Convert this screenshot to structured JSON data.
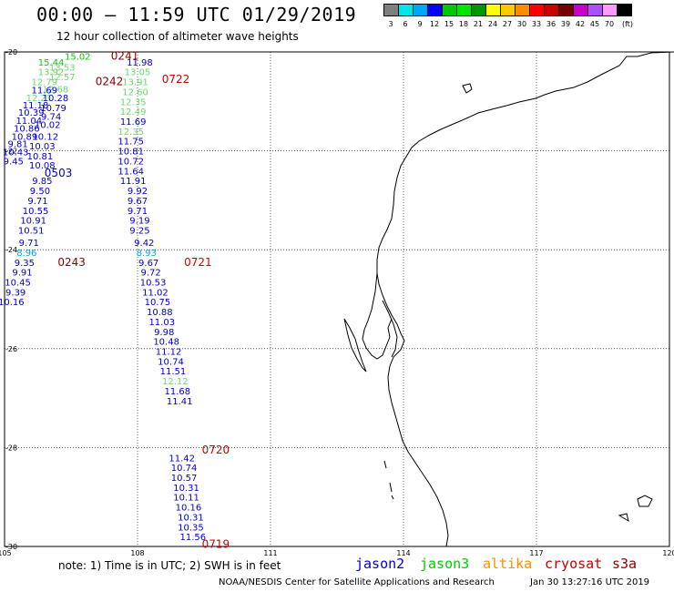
{
  "header": {
    "title": "00:00 – 11:59 UTC 01/29/2019",
    "subtitle": "12 hour collection of altimeter wave heights"
  },
  "colorbar": {
    "colors": [
      "#7f7f7f",
      "#00e5e5",
      "#00a5ff",
      "#0000ff",
      "#00c800",
      "#00e600",
      "#009600",
      "#ffff00",
      "#ffc800",
      "#ff8c00",
      "#ff0000",
      "#c80000",
      "#780000",
      "#c800c8",
      "#aa50ff",
      "#ff9bff",
      "#000000"
    ],
    "labels": [
      "3",
      "6",
      "9",
      "12",
      "15",
      "18",
      "21",
      "24",
      "27",
      "30",
      "33",
      "36",
      "39",
      "42",
      "45",
      "70",
      "(ft)"
    ]
  },
  "map": {
    "lon_ticks": [
      "105",
      "108",
      "111",
      "114",
      "117",
      "120"
    ],
    "lat_ticks": [
      "-20",
      "-22",
      "-24",
      "-26",
      "-28",
      "-30"
    ],
    "lon_range": [
      105,
      120
    ],
    "lat_range": [
      -20,
      -30
    ],
    "gridlines": true
  },
  "colors": {
    "jason2": "#0000cc",
    "jason3": "#00cc00",
    "altika": "#ff8c00",
    "cryosat": "#cc0000",
    "s3a": "#8b0000",
    "lightgreen": "#66dd66",
    "cyan": "#00aacc"
  },
  "pass_labels": [
    {
      "text": "0241",
      "lon": 107.4,
      "lat": -20.08,
      "color": "s3a"
    },
    {
      "text": "0722",
      "lon": 108.55,
      "lat": -20.55,
      "color": "cryosat"
    },
    {
      "text": "0242",
      "lon": 107.05,
      "lat": -20.6,
      "color": "s3a"
    },
    {
      "text": "0503",
      "lon": 105.9,
      "lat": -22.45,
      "color": "jason2"
    },
    {
      "text": "0243",
      "lon": 106.2,
      "lat": -24.25,
      "color": "s3a"
    },
    {
      "text": "0721",
      "lon": 109.05,
      "lat": -24.25,
      "color": "cryosat"
    },
    {
      "text": "0720",
      "lon": 109.45,
      "lat": -28.05,
      "color": "cryosat"
    },
    {
      "text": "0719",
      "lon": 109.45,
      "lat": -29.95,
      "color": "cryosat"
    }
  ],
  "tracks": [
    {
      "name": "track-0241",
      "points": [
        {
          "v": "15.02",
          "lon": 106.65,
          "lat": -20.08,
          "c": "jason3"
        },
        {
          "v": "15.44",
          "lon": 106.05,
          "lat": -20.2,
          "c": "jason3"
        },
        {
          "v": "13.53",
          "lon": 106.3,
          "lat": -20.3,
          "c": "lightgreen"
        },
        {
          "v": "13.92",
          "lon": 106.05,
          "lat": -20.4,
          "c": "lightgreen"
        },
        {
          "v": "12.57",
          "lon": 106.3,
          "lat": -20.5,
          "c": "lightgreen"
        },
        {
          "v": "12.79",
          "lon": 105.9,
          "lat": -20.6,
          "c": "lightgreen"
        },
        {
          "v": "12.68",
          "lon": 106.15,
          "lat": -20.75,
          "c": "lightgreen"
        },
        {
          "v": "11.69",
          "lon": 105.9,
          "lat": -20.76,
          "c": "jason2"
        },
        {
          "v": "12.21",
          "lon": 105.78,
          "lat": -20.92,
          "c": "lightgreen"
        },
        {
          "v": "10.28",
          "lon": 106.15,
          "lat": -20.92,
          "c": "jason2"
        },
        {
          "v": "11.18",
          "lon": 105.7,
          "lat": -21.07,
          "c": "jason2"
        },
        {
          "v": "10.79",
          "lon": 106.1,
          "lat": -21.12,
          "c": "jason2"
        },
        {
          "v": "10.39",
          "lon": 105.6,
          "lat": -21.22,
          "c": "jason2"
        },
        {
          "v": "9.74",
          "lon": 106.05,
          "lat": -21.3,
          "c": "jason2"
        },
        {
          "v": "11.04",
          "lon": 105.55,
          "lat": -21.38,
          "c": "jason2"
        },
        {
          "v": "10.02",
          "lon": 105.97,
          "lat": -21.46,
          "c": "jason2"
        },
        {
          "v": "10.86",
          "lon": 105.5,
          "lat": -21.54,
          "c": "jason2"
        },
        {
          "v": "10.12",
          "lon": 105.92,
          "lat": -21.7,
          "c": "jason2"
        },
        {
          "v": "10.89",
          "lon": 105.45,
          "lat": -21.7,
          "c": "jason2"
        },
        {
          "v": "9.81",
          "lon": 105.3,
          "lat": -21.85,
          "c": "jason2"
        },
        {
          "v": "10.03",
          "lon": 105.85,
          "lat": -21.9,
          "c": "jason2"
        },
        {
          "v": "10.43",
          "lon": 105.25,
          "lat": -22.02,
          "c": "jason2"
        },
        {
          "v": "10.81",
          "lon": 105.8,
          "lat": -22.1,
          "c": "jason2"
        },
        {
          "v": "9.45",
          "lon": 105.2,
          "lat": -22.2,
          "c": "jason2"
        },
        {
          "v": "10.08",
          "lon": 105.85,
          "lat": -22.28,
          "c": "jason2"
        },
        {
          "v": "9.85",
          "lon": 105.85,
          "lat": -22.6,
          "c": "jason2"
        },
        {
          "v": "9.50",
          "lon": 105.8,
          "lat": -22.8,
          "c": "jason2"
        },
        {
          "v": "9.71",
          "lon": 105.75,
          "lat": -23.0,
          "c": "jason2"
        },
        {
          "v": "10.55",
          "lon": 105.7,
          "lat": -23.2,
          "c": "jason2"
        },
        {
          "v": "10.91",
          "lon": 105.65,
          "lat": -23.4,
          "c": "jason2"
        },
        {
          "v": "10.51",
          "lon": 105.6,
          "lat": -23.6,
          "c": "jason2"
        }
      ]
    },
    {
      "name": "track-0722",
      "points": [
        {
          "v": "11.98",
          "lon": 108.05,
          "lat": -20.2,
          "c": "jason2"
        },
        {
          "v": "13.05",
          "lon": 108.0,
          "lat": -20.4,
          "c": "lightgreen"
        },
        {
          "v": "13.91",
          "lon": 107.95,
          "lat": -20.6,
          "c": "lightgreen"
        },
        {
          "v": "12.60",
          "lon": 107.95,
          "lat": -20.8,
          "c": "lightgreen"
        },
        {
          "v": "12.35",
          "lon": 107.9,
          "lat": -21.0,
          "c": "lightgreen"
        },
        {
          "v": "12.49",
          "lon": 107.9,
          "lat": -21.2,
          "c": "lightgreen"
        },
        {
          "v": "11.69",
          "lon": 107.9,
          "lat": -21.4,
          "c": "jason2"
        },
        {
          "v": "12.35",
          "lon": 107.85,
          "lat": -21.6,
          "c": "lightgreen"
        },
        {
          "v": "11.75",
          "lon": 107.85,
          "lat": -21.8,
          "c": "jason2"
        },
        {
          "v": "10.81",
          "lon": 107.85,
          "lat": -22.0,
          "c": "jason2"
        },
        {
          "v": "10.72",
          "lon": 107.85,
          "lat": -22.2,
          "c": "jason2"
        },
        {
          "v": "11.64",
          "lon": 107.85,
          "lat": -22.4,
          "c": "jason2"
        },
        {
          "v": "11.91",
          "lon": 107.9,
          "lat": -22.6,
          "c": "jason2"
        },
        {
          "v": "9.92",
          "lon": 108.0,
          "lat": -22.8,
          "c": "jason2"
        },
        {
          "v": "9.67",
          "lon": 108.0,
          "lat": -23.0,
          "c": "jason2"
        },
        {
          "v": "9.71",
          "lon": 108.0,
          "lat": -23.2,
          "c": "jason2"
        },
        {
          "v": "9.19",
          "lon": 108.05,
          "lat": -23.4,
          "c": "jason2"
        },
        {
          "v": "9.25",
          "lon": 108.05,
          "lat": -23.6,
          "c": "jason2"
        }
      ]
    },
    {
      "name": "track-0243",
      "points": [
        {
          "v": "9.71",
          "lon": 105.55,
          "lat": -23.85,
          "c": "jason2"
        },
        {
          "v": "8.96",
          "lon": 105.5,
          "lat": -24.05,
          "c": "cyan"
        },
        {
          "v": "9.35",
          "lon": 105.45,
          "lat": -24.25,
          "c": "jason2"
        },
        {
          "v": "9.91",
          "lon": 105.4,
          "lat": -24.45,
          "c": "jason2"
        },
        {
          "v": "10.45",
          "lon": 105.3,
          "lat": -24.65,
          "c": "jason2"
        },
        {
          "v": "9.39",
          "lon": 105.25,
          "lat": -24.85,
          "c": "jason2"
        },
        {
          "v": "10.16",
          "lon": 105.15,
          "lat": -25.05,
          "c": "jason2"
        }
      ]
    },
    {
      "name": "track-0721",
      "points": [
        {
          "v": "9.42",
          "lon": 108.15,
          "lat": -23.85,
          "c": "jason2"
        },
        {
          "v": "8.93",
          "lon": 108.2,
          "lat": -24.05,
          "c": "cyan"
        },
        {
          "v": "9.67",
          "lon": 108.25,
          "lat": -24.25,
          "c": "jason2"
        },
        {
          "v": "9.72",
          "lon": 108.3,
          "lat": -24.45,
          "c": "jason2"
        },
        {
          "v": "10.53",
          "lon": 108.35,
          "lat": -24.65,
          "c": "jason2"
        },
        {
          "v": "11.02",
          "lon": 108.4,
          "lat": -24.85,
          "c": "jason2"
        },
        {
          "v": "10.75",
          "lon": 108.45,
          "lat": -25.05,
          "c": "jason2"
        },
        {
          "v": "10.88",
          "lon": 108.5,
          "lat": -25.25,
          "c": "jason2"
        },
        {
          "v": "11.03",
          "lon": 108.55,
          "lat": -25.45,
          "c": "jason2"
        },
        {
          "v": "9.98",
          "lon": 108.6,
          "lat": -25.65,
          "c": "jason2"
        },
        {
          "v": "10.48",
          "lon": 108.65,
          "lat": -25.85,
          "c": "jason2"
        },
        {
          "v": "11.12",
          "lon": 108.7,
          "lat": -26.05,
          "c": "jason2"
        },
        {
          "v": "10.74",
          "lon": 108.75,
          "lat": -26.25,
          "c": "jason2"
        },
        {
          "v": "11.51",
          "lon": 108.8,
          "lat": -26.45,
          "c": "jason2"
        },
        {
          "v": "12.12",
          "lon": 108.85,
          "lat": -26.65,
          "c": "lightgreen"
        },
        {
          "v": "11.68",
          "lon": 108.9,
          "lat": -26.85,
          "c": "jason2"
        },
        {
          "v": "11.41",
          "lon": 108.95,
          "lat": -27.05,
          "c": "jason2"
        }
      ]
    },
    {
      "name": "track-0720",
      "points": [
        {
          "v": "11.42",
          "lon": 109.0,
          "lat": -28.2,
          "c": "jason2"
        },
        {
          "v": "10.74",
          "lon": 109.05,
          "lat": -28.4,
          "c": "jason2"
        },
        {
          "v": "10.57",
          "lon": 109.05,
          "lat": -28.6,
          "c": "jason2"
        },
        {
          "v": "10.31",
          "lon": 109.1,
          "lat": -28.8,
          "c": "jason2"
        },
        {
          "v": "10.11",
          "lon": 109.1,
          "lat": -29.0,
          "c": "jason2"
        },
        {
          "v": "10.16",
          "lon": 109.15,
          "lat": -29.2,
          "c": "jason2"
        },
        {
          "v": "10.31",
          "lon": 109.2,
          "lat": -29.4,
          "c": "jason2"
        },
        {
          "v": "10.35",
          "lon": 109.2,
          "lat": -29.6,
          "c": "jason2"
        },
        {
          "v": "11.56",
          "lon": 109.25,
          "lat": -29.8,
          "c": "jason2"
        }
      ]
    }
  ],
  "footer": {
    "note": "note: 1) Time is in UTC; 2) SWH is in feet",
    "missions": [
      {
        "name": "jason2",
        "color": "jason2"
      },
      {
        "name": "jason3",
        "color": "jason3"
      },
      {
        "name": "altika",
        "color": "altika"
      },
      {
        "name": "cryosat",
        "color": "cryosat"
      },
      {
        "name": "s3a",
        "color": "s3a"
      }
    ],
    "credit": "NOAA/NESDIS Center for Satellite Applications and Research",
    "timestamp": "Jan 30 13:27:16 UTC 2019"
  }
}
